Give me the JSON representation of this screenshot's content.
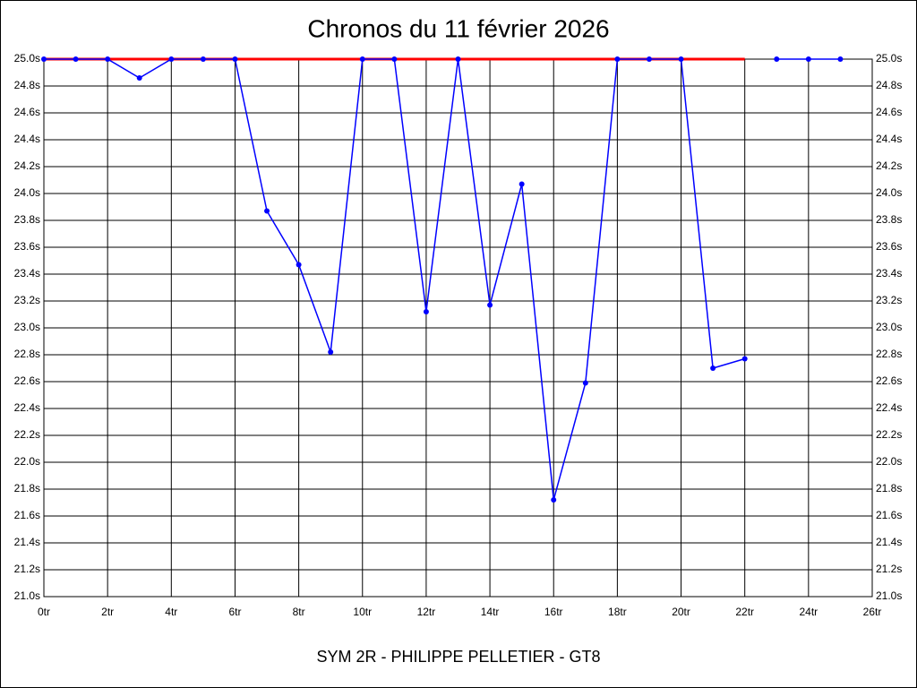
{
  "chart_data": {
    "type": "line",
    "title": "Chronos du 11 février 2026",
    "footer": "SYM 2R - PHILIPPE PELLETIER - GT8",
    "series": [
      {
        "color": "#ff0000",
        "x": [
          0,
          22
        ],
        "values": [
          25.0,
          25.0
        ],
        "markers": false
      },
      {
        "color": "#0000ff",
        "x": [
          0,
          1,
          2,
          3,
          4,
          5,
          6,
          7,
          8,
          9,
          10,
          11,
          12,
          13,
          14,
          15,
          16,
          17,
          18,
          19,
          20,
          21,
          22
        ],
        "values": [
          25.0,
          25.0,
          25.0,
          24.86,
          25.0,
          25.0,
          25.0,
          23.87,
          23.47,
          22.82,
          25.0,
          25.0,
          23.12,
          25.0,
          23.17,
          24.07,
          21.72,
          22.59,
          25.0,
          25.0,
          25.0,
          22.7,
          22.77
        ],
        "markers": true
      },
      {
        "color": "#0000ff",
        "x": [
          23,
          24,
          25
        ],
        "values": [
          25.0,
          25.0,
          25.0
        ],
        "markers": true
      }
    ],
    "xlim": [
      0,
      26
    ],
    "ylim": [
      21.0,
      25.0
    ],
    "grid": true,
    "xticks": [
      {
        "value": 0,
        "label": "0tr"
      },
      {
        "value": 2,
        "label": "2tr"
      },
      {
        "value": 4,
        "label": "4tr"
      },
      {
        "value": 6,
        "label": "6tr"
      },
      {
        "value": 8,
        "label": "8tr"
      },
      {
        "value": 10,
        "label": "10tr"
      },
      {
        "value": 12,
        "label": "12tr"
      },
      {
        "value": 14,
        "label": "14tr"
      },
      {
        "value": 16,
        "label": "16tr"
      },
      {
        "value": 18,
        "label": "18tr"
      },
      {
        "value": 20,
        "label": "20tr"
      },
      {
        "value": 22,
        "label": "22tr"
      },
      {
        "value": 24,
        "label": "24tr"
      },
      {
        "value": 26,
        "label": "26tr"
      }
    ],
    "yticks": [
      {
        "value": 21.0,
        "label": "21.0s"
      },
      {
        "value": 21.2,
        "label": "21.2s"
      },
      {
        "value": 21.4,
        "label": "21.4s"
      },
      {
        "value": 21.6,
        "label": "21.6s"
      },
      {
        "value": 21.8,
        "label": "21.8s"
      },
      {
        "value": 22.0,
        "label": "22.0s"
      },
      {
        "value": 22.2,
        "label": "22.2s"
      },
      {
        "value": 22.4,
        "label": "22.4s"
      },
      {
        "value": 22.6,
        "label": "22.6s"
      },
      {
        "value": 22.8,
        "label": "22.8s"
      },
      {
        "value": 23.0,
        "label": "23.0s"
      },
      {
        "value": 23.2,
        "label": "23.2s"
      },
      {
        "value": 23.4,
        "label": "23.4s"
      },
      {
        "value": 23.6,
        "label": "23.6s"
      },
      {
        "value": 23.8,
        "label": "23.8s"
      },
      {
        "value": 24.0,
        "label": "24.0s"
      },
      {
        "value": 24.2,
        "label": "24.2s"
      },
      {
        "value": 24.4,
        "label": "24.4s"
      },
      {
        "value": 24.6,
        "label": "24.6s"
      },
      {
        "value": 24.8,
        "label": "24.8s"
      },
      {
        "value": 25.0,
        "label": "25.0s"
      }
    ]
  }
}
